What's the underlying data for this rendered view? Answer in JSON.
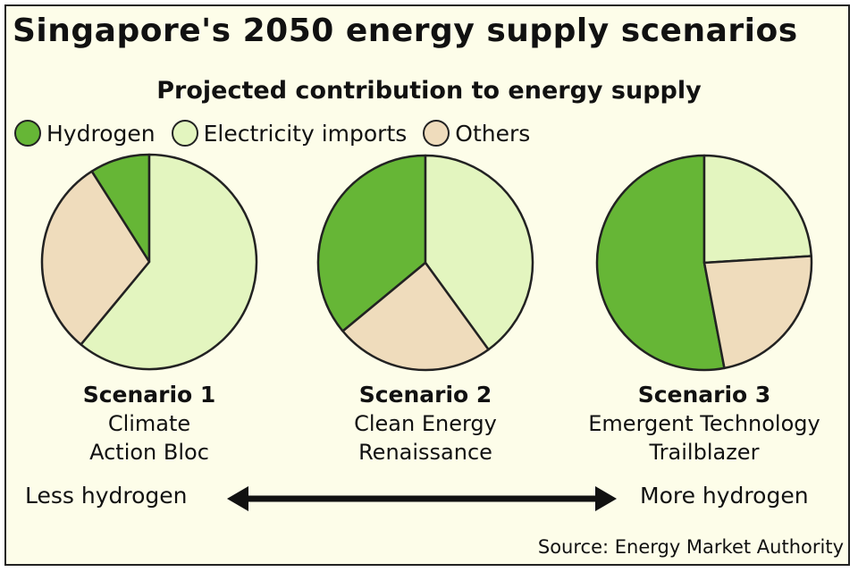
{
  "chart_data": {
    "type": "pie",
    "title": "Singapore's 2050 energy supply scenarios",
    "subtitle": "Projected contribution to energy supply",
    "legend": [
      {
        "name": "Hydrogen",
        "color": "#66b636"
      },
      {
        "name": "Electricity imports",
        "color": "#e3f5bf"
      },
      {
        "name": "Others",
        "color": "#efdcbc"
      }
    ],
    "legend_placement": "top-left",
    "pies": [
      {
        "heading": "Scenario 1",
        "name_line1": "Climate",
        "name_line2": "Action Bloc",
        "values": {
          "Hydrogen": 9,
          "Electricity imports": 61,
          "Others": 30
        }
      },
      {
        "heading": "Scenario 2",
        "name_line1": "Clean Energy",
        "name_line2": "Renaissance",
        "values": {
          "Hydrogen": 36,
          "Electricity imports": 40,
          "Others": 24
        }
      },
      {
        "heading": "Scenario 3",
        "name_line1": "Emergent Technology",
        "name_line2": "Trailblazer",
        "values": {
          "Hydrogen": 53,
          "Electricity imports": 24,
          "Others": 23
        }
      }
    ],
    "axis_left": "Less hydrogen",
    "axis_right": "More hydrogen",
    "source": "Source: Energy Market Authority"
  }
}
